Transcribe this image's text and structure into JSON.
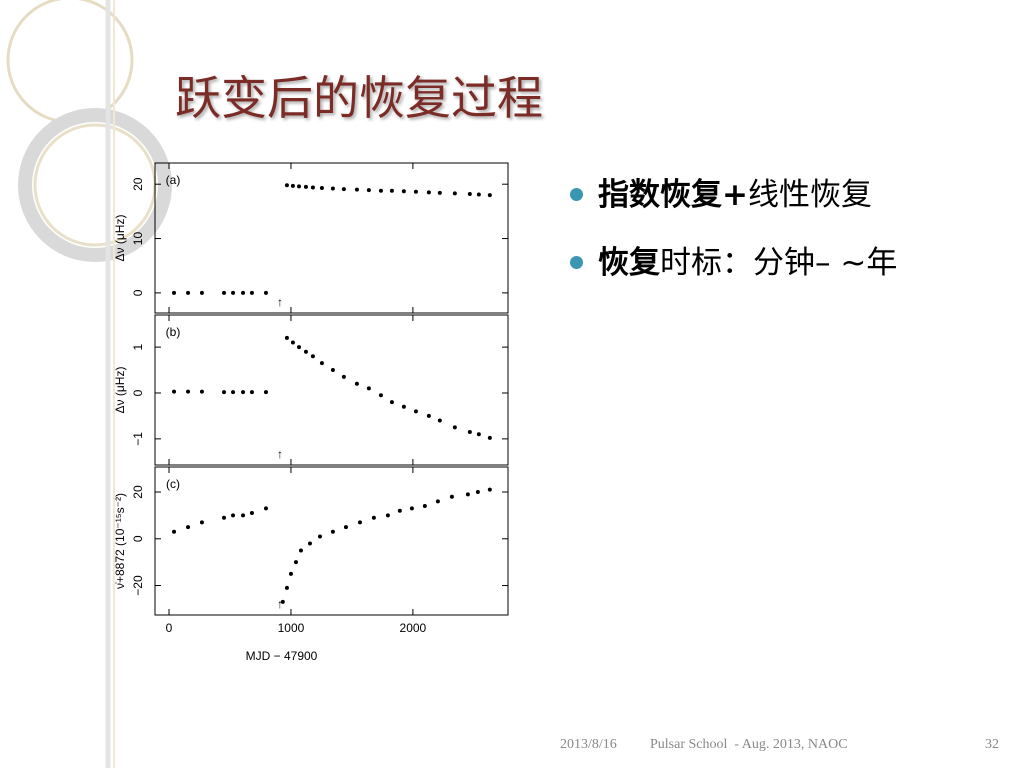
{
  "slide": {
    "title": "跃变后的恢复过程",
    "bullets": [
      [
        "指数恢复+",
        "线性恢复"
      ],
      [
        "恢复",
        "时标：分钟– ~年"
      ]
    ],
    "footer": {
      "date": "2013/8/16",
      "event": "Pulsar School  - Aug. 2013, NAOC",
      "page": "32"
    }
  },
  "chart_data": [
    {
      "type": "scatter",
      "panel_label": "(a)",
      "y_label": "Δν (μHz)",
      "xlim": [
        -115,
        2780
      ],
      "ylim": [
        -3.7,
        23.9
      ],
      "yticks": [
        0,
        10,
        20
      ],
      "annotation": {
        "text": "↑",
        "x": 910
      },
      "x": [
        41,
        156,
        270,
        451,
        525,
        607,
        680,
        795,
        967,
        1016,
        1066,
        1123,
        1180,
        1254,
        1344,
        1434,
        1541,
        1639,
        1738,
        1828,
        1926,
        2025,
        2131,
        2221,
        2344,
        2467,
        2541,
        2631
      ],
      "values": [
        0,
        0,
        0,
        0,
        0,
        0,
        0,
        0,
        19.8,
        19.7,
        19.6,
        19.5,
        19.4,
        19.3,
        19.2,
        19.1,
        19.0,
        18.9,
        18.8,
        18.8,
        18.7,
        18.6,
        18.5,
        18.4,
        18.3,
        18.2,
        18.1,
        18.0
      ]
    },
    {
      "type": "scatter",
      "panel_label": "(b)",
      "y_label": "Δν (μHz)",
      "xlim": [
        -115,
        2780
      ],
      "ylim": [
        -1.57,
        1.7
      ],
      "yticks": [
        {
          "value": -1,
          "label": "−1"
        },
        0,
        1
      ],
      "annotation": {
        "text": "↑",
        "x": 910
      },
      "x": [
        41,
        156,
        270,
        451,
        525,
        607,
        680,
        795,
        967,
        1016,
        1066,
        1123,
        1180,
        1254,
        1344,
        1434,
        1541,
        1639,
        1738,
        1828,
        1926,
        2025,
        2131,
        2221,
        2344,
        2467,
        2541,
        2631
      ],
      "values": [
        0.03,
        0.03,
        0.03,
        0.02,
        0.02,
        0.02,
        0.02,
        0.02,
        1.2,
        1.1,
        1.0,
        0.9,
        0.8,
        0.65,
        0.5,
        0.35,
        0.2,
        0.1,
        -0.05,
        -0.2,
        -0.3,
        -0.4,
        -0.5,
        -0.6,
        -0.75,
        -0.85,
        -0.9,
        -0.98
      ]
    },
    {
      "type": "scatter",
      "panel_label": "(c)",
      "y_label": "ν̇+8872 (10⁻¹⁵s⁻²)",
      "x_label": "MJD − 47900",
      "xlim": [
        -115,
        2780
      ],
      "xticks": [
        0,
        1000,
        2000
      ],
      "ylim": [
        -32.6,
        30.7
      ],
      "yticks": [
        {
          "value": -20,
          "label": "−20"
        },
        0,
        20
      ],
      "annotation": {
        "text": "↑",
        "x": 910
      },
      "x": [
        41,
        156,
        270,
        451,
        525,
        607,
        680,
        795,
        933,
        967,
        1000,
        1041,
        1082,
        1156,
        1238,
        1344,
        1451,
        1566,
        1680,
        1795,
        1893,
        1992,
        2098,
        2205,
        2320,
        2451,
        2533,
        2631
      ],
      "values": [
        3,
        5,
        7,
        9,
        10,
        10,
        11,
        13,
        -27,
        -21,
        -15,
        -10,
        -5,
        -2,
        1,
        3,
        5,
        7,
        9,
        10,
        12,
        13,
        14,
        16,
        18,
        19,
        20,
        21
      ]
    }
  ]
}
